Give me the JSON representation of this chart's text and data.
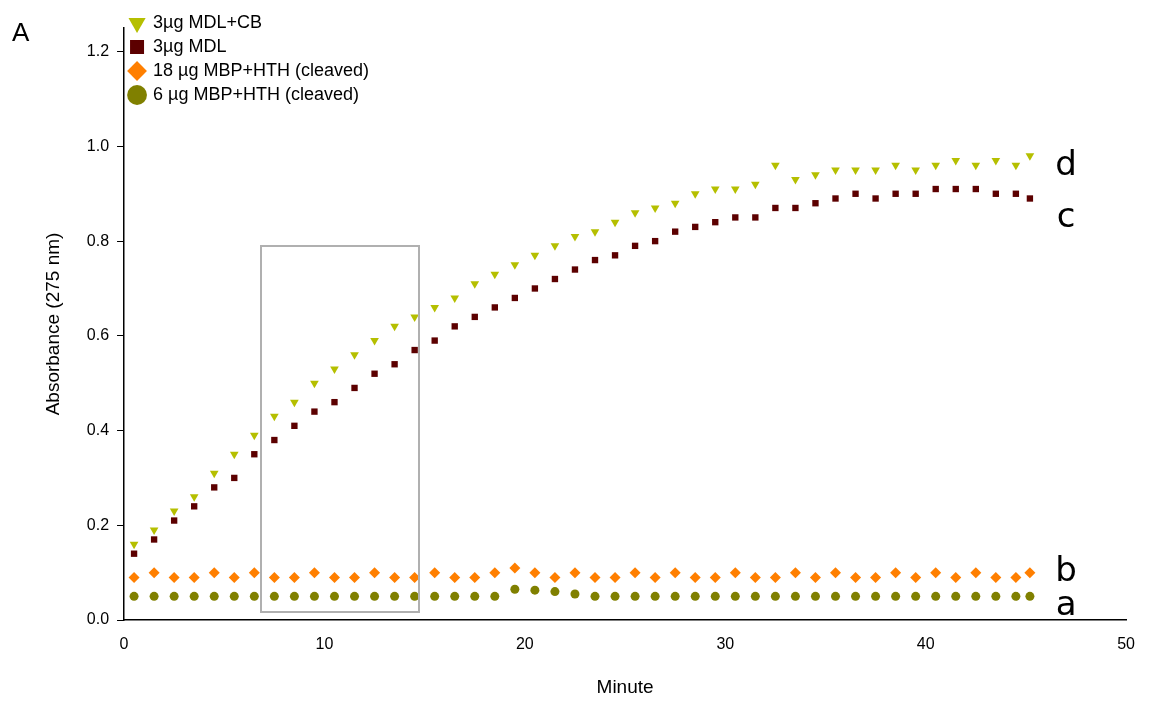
{
  "chart_data": {
    "type": "scatter",
    "xlabel": "Minute",
    "ylabel": "Absorbance (275 nm)",
    "xlim": [
      0,
      50
    ],
    "xticks": [
      0,
      10,
      20,
      30,
      40,
      50
    ],
    "ylim": [
      0,
      1.25
    ],
    "yticks": [
      {
        "value": 0,
        "label": "0.0"
      },
      {
        "value": 0.2,
        "label": "0.2"
      },
      {
        "value": 0.4,
        "label": "0.4"
      },
      {
        "value": 0.6,
        "label": "0.6"
      },
      {
        "value": 0.8,
        "label": "0.8"
      },
      {
        "value": 1,
        "label": "1.0"
      },
      {
        "value": 1.2,
        "label": "1.2"
      }
    ],
    "grid": false,
    "legend": "top left",
    "x": [
      0.5,
      1.5,
      2.5,
      3.5,
      4.5,
      5.5,
      6.5,
      7.5,
      8.5,
      9.5,
      10.5,
      11.5,
      12.5,
      13.5,
      14.5,
      15.5,
      16.5,
      17.5,
      18.5,
      19.5,
      20.5,
      21.5,
      22.5,
      23.5,
      24.5,
      25.5,
      26.5,
      27.5,
      28.5,
      29.5,
      30.5,
      31.5,
      32.5,
      33.5,
      34.5,
      35.5,
      36.5,
      37.5,
      38.5,
      39.5,
      40.5,
      41.5,
      42.5,
      43.5,
      44.5,
      45.2
    ],
    "series": [
      {
        "name": "3µg MDL+CB",
        "color": "#b5bf00",
        "marker": "triangle",
        "values": [
          0.16,
          0.19,
          0.23,
          0.26,
          0.31,
          0.35,
          0.39,
          0.43,
          0.46,
          0.5,
          0.53,
          0.56,
          0.59,
          0.62,
          0.64,
          0.66,
          0.68,
          0.71,
          0.73,
          0.75,
          0.77,
          0.79,
          0.81,
          0.82,
          0.84,
          0.86,
          0.87,
          0.88,
          0.9,
          0.91,
          0.91,
          0.92,
          0.96,
          0.93,
          0.94,
          0.95,
          0.95,
          0.95,
          0.96,
          0.95,
          0.96,
          0.97,
          0.96,
          0.97,
          0.96,
          0.98
        ]
      },
      {
        "name": "3µg MDL",
        "color": "#5c0000",
        "marker": "square",
        "values": [
          0.14,
          0.17,
          0.21,
          0.24,
          0.28,
          0.3,
          0.35,
          0.38,
          0.41,
          0.44,
          0.46,
          0.49,
          0.52,
          0.54,
          0.57,
          0.59,
          0.62,
          0.64,
          0.66,
          0.68,
          0.7,
          0.72,
          0.74,
          0.76,
          0.77,
          0.79,
          0.8,
          0.82,
          0.83,
          0.84,
          0.85,
          0.85,
          0.87,
          0.87,
          0.88,
          0.89,
          0.9,
          0.89,
          0.9,
          0.9,
          0.91,
          0.91,
          0.91,
          0.9,
          0.9,
          0.89
        ]
      },
      {
        "name": "18 µg MBP+HTH (cleaved)",
        "color": "#ff7f00",
        "marker": "diamond",
        "values": [
          0.09,
          0.1,
          0.09,
          0.09,
          0.1,
          0.09,
          0.1,
          0.09,
          0.09,
          0.1,
          0.09,
          0.09,
          0.1,
          0.09,
          0.09,
          0.1,
          0.09,
          0.09,
          0.1,
          0.11,
          0.1,
          0.09,
          0.1,
          0.09,
          0.09,
          0.1,
          0.09,
          0.1,
          0.09,
          0.09,
          0.1,
          0.09,
          0.09,
          0.1,
          0.09,
          0.1,
          0.09,
          0.09,
          0.1,
          0.09,
          0.1,
          0.09,
          0.1,
          0.09,
          0.09,
          0.1
        ]
      },
      {
        "name": "6 µg MBP+HTH (cleaved)",
        "color": "#808000",
        "marker": "circle",
        "values": [
          0.05,
          0.05,
          0.05,
          0.05,
          0.05,
          0.05,
          0.05,
          0.05,
          0.05,
          0.05,
          0.05,
          0.05,
          0.05,
          0.05,
          0.05,
          0.05,
          0.05,
          0.05,
          0.05,
          0.065,
          0.063,
          0.06,
          0.055,
          0.05,
          0.05,
          0.05,
          0.05,
          0.05,
          0.05,
          0.05,
          0.05,
          0.05,
          0.05,
          0.05,
          0.05,
          0.05,
          0.05,
          0.05,
          0.05,
          0.05,
          0.05,
          0.05,
          0.05,
          0.05,
          0.05,
          0.05
        ]
      }
    ],
    "annotations": [
      "A",
      "d",
      "c",
      "b",
      "a"
    ]
  }
}
